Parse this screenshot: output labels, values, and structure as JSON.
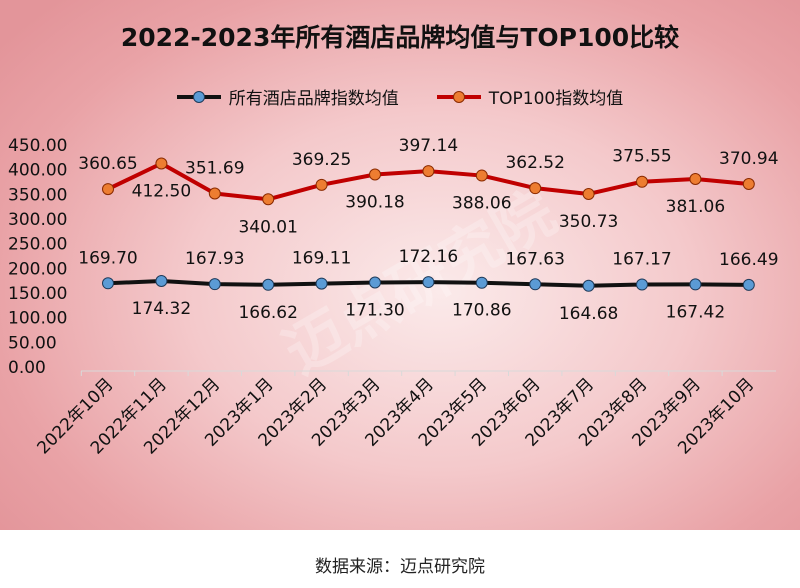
{
  "chart_data": {
    "type": "line",
    "title": "2022-2023年所有酒店品牌均值与TOP100比较",
    "categories": [
      "2022年10月",
      "2022年11月",
      "2022年12月",
      "2023年1月",
      "2023年2月",
      "2023年3月",
      "2023年4月",
      "2023年5月",
      "2023年6月",
      "2023年7月",
      "2023年8月",
      "2023年9月",
      "2023年10月"
    ],
    "yticks": [
      "0.00",
      "50.00",
      "100.00",
      "150.00",
      "200.00",
      "250.00",
      "300.00",
      "350.00",
      "400.00",
      "450.00"
    ],
    "ylim": [
      0,
      450
    ],
    "grid": false,
    "legend_position": "top",
    "series": [
      {
        "name": "所有酒店品牌指数均值",
        "line_color": "#111111",
        "marker_color": "#5b9bd5",
        "values": [
          169.7,
          174.32,
          167.93,
          166.62,
          169.11,
          171.3,
          172.16,
          170.86,
          167.63,
          164.68,
          167.17,
          167.42,
          166.49
        ],
        "labels": [
          "169.70",
          "174.32",
          "167.93",
          "166.62",
          "169.11",
          "171.30",
          "172.16",
          "170.86",
          "167.63",
          "164.68",
          "167.17",
          "167.42",
          "166.49"
        ]
      },
      {
        "name": "TOP100指数均值",
        "line_color": "#c00000",
        "marker_color": "#ed7d31",
        "values": [
          360.65,
          412.5,
          351.69,
          340.01,
          369.25,
          390.18,
          397.14,
          388.06,
          362.52,
          350.73,
          375.55,
          381.06,
          370.94
        ],
        "labels": [
          "360.65",
          "412.50",
          "351.69",
          "340.01",
          "369.25",
          "390.18",
          "397.14",
          "388.06",
          "362.52",
          "350.73",
          "375.55",
          "381.06",
          "370.94"
        ]
      }
    ]
  },
  "source": "数据来源：迈点研究院",
  "watermark": "迈点研究院"
}
